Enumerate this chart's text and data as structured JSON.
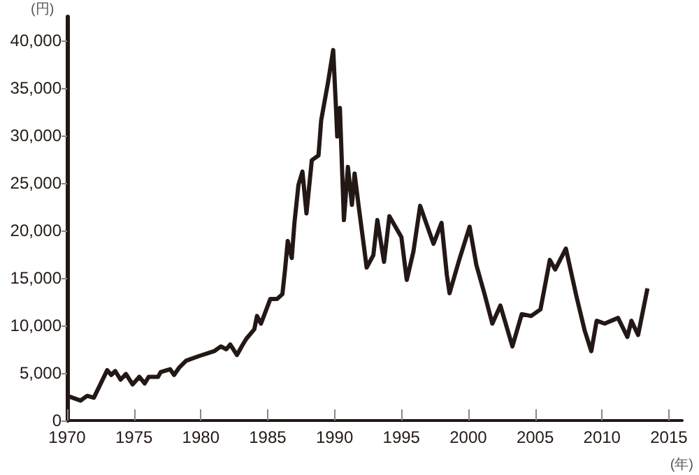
{
  "chart_data": {
    "type": "line",
    "xlabel": "(年)",
    "ylabel": "(円)",
    "xlim": [
      1970,
      2016
    ],
    "xticks": [
      1970,
      1975,
      1980,
      1985,
      1990,
      1995,
      2000,
      2005,
      2010,
      2015
    ],
    "ylim": [
      0,
      42500
    ],
    "yticks": [
      {
        "value": 0,
        "label": "0"
      },
      {
        "value": 5000,
        "label": "5,000"
      },
      {
        "value": 10000,
        "label": "10,000"
      },
      {
        "value": 15000,
        "label": "15,000"
      },
      {
        "value": 20000,
        "label": "20,000"
      },
      {
        "value": 25000,
        "label": "25,000"
      },
      {
        "value": 30000,
        "label": "30,000"
      },
      {
        "value": 35000,
        "label": "35,000"
      },
      {
        "value": 40000,
        "label": "40,000"
      }
    ],
    "grid": false,
    "marker": "none",
    "line_style": "solid",
    "series": [
      {
        "color": "#231815",
        "x": [
          1970.0,
          1971.0,
          1971.5,
          1972.0,
          1973.0,
          1973.3,
          1973.6,
          1974.0,
          1974.4,
          1974.9,
          1975.4,
          1975.8,
          1976.1,
          1976.8,
          1977.0,
          1977.7,
          1978.0,
          1978.4,
          1978.9,
          1979.9,
          1981.0,
          1981.5,
          1981.9,
          1982.2,
          1982.7,
          1983.1,
          1983.4,
          1984.0,
          1984.2,
          1984.5,
          1985.2,
          1985.7,
          1986.1,
          1986.3,
          1986.5,
          1986.8,
          1987.0,
          1987.3,
          1987.6,
          1987.9,
          1988.3,
          1988.8,
          1989.0,
          1989.5,
          1989.9,
          1990.1,
          1990.2,
          1990.4,
          1990.7,
          1991.0,
          1991.3,
          1991.5,
          1991.8,
          1992.2,
          1992.4,
          1992.9,
          1993.2,
          1993.7,
          1994.1,
          1995.0,
          1995.4,
          1995.9,
          1996.4,
          1997.4,
          1998.0,
          1998.4,
          1998.6,
          1999.3,
          2000.1,
          2000.6,
          2001.2,
          2001.8,
          2002.4,
          2003.3,
          2004.0,
          2004.7,
          2005.4,
          2006.1,
          2006.5,
          2007.3,
          2008.1,
          2008.7,
          2009.2,
          2009.6,
          2010.2,
          2011.2,
          2011.9,
          2012.2,
          2012.7,
          2013.4
        ],
        "values": [
          2600,
          2100,
          2600,
          2400,
          5300,
          4800,
          5200,
          4300,
          4900,
          3800,
          4600,
          3900,
          4600,
          4600,
          5100,
          5400,
          4800,
          5600,
          6300,
          6800,
          7300,
          7800,
          7500,
          8000,
          6900,
          7900,
          8600,
          9600,
          11000,
          10200,
          12800,
          12800,
          13300,
          15900,
          18900,
          17100,
          20800,
          24800,
          26200,
          21800,
          27400,
          27900,
          31600,
          35500,
          39000,
          33100,
          29900,
          32900,
          21100,
          26700,
          22700,
          26000,
          22600,
          18300,
          16100,
          17400,
          21100,
          16700,
          21500,
          19300,
          14800,
          17800,
          22600,
          18600,
          20800,
          15300,
          13400,
          16800,
          20400,
          16400,
          13400,
          10200,
          12100,
          7800,
          11200,
          11000,
          11700,
          16900,
          15900,
          18100,
          13000,
          9500,
          7300,
          10500,
          10200,
          10800,
          8800,
          10500,
          9000,
          13900
        ]
      }
    ]
  }
}
